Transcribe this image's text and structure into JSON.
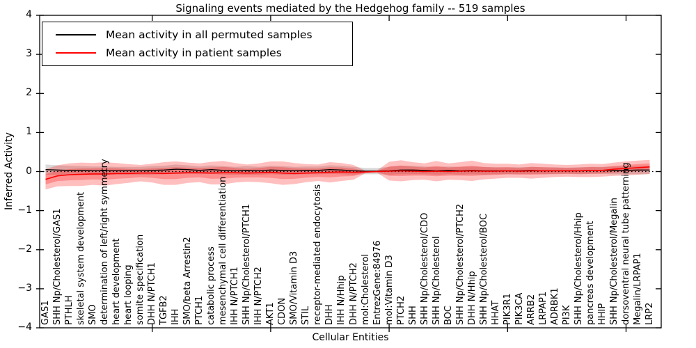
{
  "chart_data": {
    "type": "line",
    "title": "Signaling events mediated by the Hedgehog family -- 519 samples",
    "xlabel": "Cellular Entities",
    "ylabel": "Inferred Activity",
    "ylim": [
      -4,
      4
    ],
    "yticks": [
      "4",
      "3",
      "2",
      "1",
      "0",
      "−1",
      "−2",
      "−3",
      "−4"
    ],
    "ytick_values": [
      4,
      3,
      2,
      1,
      0,
      -1,
      -2,
      -3,
      -4
    ],
    "major_xtick_indices": [
      9,
      19,
      29,
      39,
      49
    ],
    "grid": false,
    "legend_position": "upper-left",
    "legend": {
      "entries": [
        {
          "label": "Mean activity in all permuted samples",
          "color": "#000000"
        },
        {
          "label": "Mean activity in patient samples",
          "color": "#ff0000"
        }
      ]
    },
    "categories": [
      "GAS1",
      "SHH Np/Cholesterol/GAS1",
      "PTHLH",
      "skeletal system development",
      "SMO",
      "determination of left/right symmetry",
      "heart development",
      "heart looping",
      "somite specification",
      "DHH N/PTCH1",
      "TGFB2",
      "IHH",
      "SMO/beta Arrestin2",
      "PTCH1",
      "catabolic process",
      "mesenchymal cell differentiation",
      "IHH N/PTCH1",
      "SHH Np/Cholesterol/PTCH1",
      "IHH N/PTCH2",
      "AKT1",
      "CDON",
      "SMO/Vitamin D3",
      "STIL",
      "receptor-mediated endocytosis",
      "DHH",
      "IHH N/Hhip",
      "DHH N/PTCH2",
      "mol:Cholesterol",
      "EntrezGene:84976",
      "mol:Vitamin D3",
      "PTCH2",
      "SHH",
      "SHH Np/Cholesterol/CDO",
      "SHH Np/Cholesterol",
      "BOC",
      "SHH Np/Cholesterol/PTCH2",
      "DHH N/Hhip",
      "SHH Np/Cholesterol/BOC",
      "HHAT",
      "PIK3R1",
      "PIK3CA",
      "ARRB2",
      "LRPAP1",
      "ADRBK1",
      "PI3K",
      "SHH Np/Cholesterol/Hhip",
      "pancreas development",
      "HHIP",
      "SHH Np/Cholesterol/Megalin",
      "dorsoventral neural tube patterning",
      "Megalin/LRPAP1",
      "LRP2"
    ],
    "series": [
      {
        "name": "Mean activity in all permuted samples",
        "color": "#000000",
        "values": [
          0.05,
          0.04,
          0.03,
          0.03,
          0.02,
          0.02,
          0.02,
          0.02,
          0.02,
          0.03,
          0.04,
          0.06,
          0.05,
          0.03,
          0.05,
          0.03,
          0.02,
          0.03,
          0.02,
          0.04,
          0.03,
          0.02,
          0.03,
          0.03,
          0.05,
          0.04,
          0.02,
          0.01,
          0.01,
          0.02,
          0.04,
          0.04,
          0.03,
          0.02,
          0.03,
          0.02,
          0.03,
          0.02,
          0.02,
          0.02,
          0.02,
          0.03,
          0.02,
          0.02,
          0.02,
          0.02,
          0.03,
          0.03,
          0.03,
          0.03,
          0.04,
          0.04
        ],
        "band_sigma": [
          0.13,
          0.12,
          0.12,
          0.11,
          0.11,
          0.11,
          0.1,
          0.1,
          0.1,
          0.11,
          0.11,
          0.12,
          0.11,
          0.1,
          0.11,
          0.11,
          0.1,
          0.11,
          0.1,
          0.11,
          0.11,
          0.1,
          0.1,
          0.1,
          0.11,
          0.11,
          0.1,
          0.08,
          0.08,
          0.1,
          0.11,
          0.11,
          0.1,
          0.1,
          0.1,
          0.1,
          0.1,
          0.1,
          0.09,
          0.09,
          0.09,
          0.09,
          0.09,
          0.09,
          0.08,
          0.09,
          0.09,
          0.09,
          0.1,
          0.1,
          0.11,
          0.11
        ],
        "band_color": "rgba(128,128,128,0.30)"
      },
      {
        "name": "Mean activity in patient samples",
        "color": "#ff0000",
        "values": [
          -0.2,
          -0.11,
          -0.08,
          -0.07,
          -0.06,
          -0.06,
          -0.05,
          -0.05,
          -0.04,
          -0.04,
          -0.05,
          -0.04,
          -0.03,
          -0.03,
          -0.04,
          -0.03,
          -0.03,
          -0.04,
          -0.03,
          -0.02,
          -0.04,
          -0.05,
          -0.04,
          -0.03,
          -0.02,
          -0.01,
          -0.02,
          -0.01,
          0.0,
          0.01,
          0.02,
          0.01,
          0.0,
          0.01,
          0.0,
          0.01,
          0.02,
          0.01,
          0.01,
          0.02,
          0.01,
          0.02,
          0.02,
          0.02,
          0.02,
          0.02,
          0.03,
          0.03,
          0.06,
          0.08,
          0.1,
          0.12
        ],
        "band_sigma": [
          0.26,
          0.27,
          0.29,
          0.3,
          0.28,
          0.3,
          0.27,
          0.24,
          0.21,
          0.24,
          0.29,
          0.3,
          0.26,
          0.24,
          0.29,
          0.3,
          0.25,
          0.22,
          0.24,
          0.28,
          0.3,
          0.27,
          0.23,
          0.21,
          0.26,
          0.23,
          0.19,
          0.03,
          0.03,
          0.24,
          0.27,
          0.23,
          0.21,
          0.26,
          0.21,
          0.23,
          0.26,
          0.21,
          0.19,
          0.18,
          0.17,
          0.2,
          0.18,
          0.16,
          0.15,
          0.16,
          0.17,
          0.16,
          0.17,
          0.18,
          0.18,
          0.18
        ],
        "band_color": "rgba(255,0,0,0.25)"
      }
    ],
    "zero_line": {
      "value": 0,
      "style": "dotted",
      "color": "#000000"
    }
  }
}
